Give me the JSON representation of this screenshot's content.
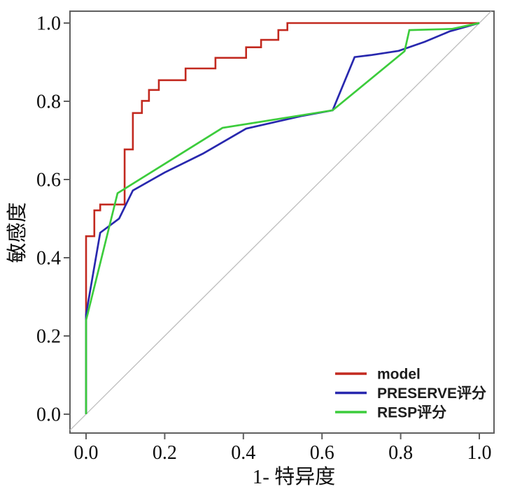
{
  "chart_data": {
    "type": "line",
    "title": "",
    "xlabel": "1- 特异度",
    "ylabel": "敏感度",
    "xlim": [
      0,
      1
    ],
    "ylim": [
      0,
      1
    ],
    "x_tick_labels": [
      "0.0",
      "0.2",
      "0.4",
      "0.6",
      "0.8",
      "1.0"
    ],
    "y_tick_labels": [
      "0.0",
      "0.2",
      "0.4",
      "0.6",
      "0.8",
      "1.0"
    ],
    "grid": false,
    "legend_position": "bottom-right",
    "reference_diagonal": {
      "present": true,
      "color": "#bdbdbd"
    },
    "frame_color": "#5f5f5f",
    "series": [
      {
        "name": "model",
        "color": "#c2291f",
        "stroke_width": 2.6,
        "points": [
          [
            0,
            0
          ],
          [
            0,
            0.455
          ],
          [
            0.021,
            0.455
          ],
          [
            0.021,
            0.521
          ],
          [
            0.036,
            0.521
          ],
          [
            0.036,
            0.536
          ],
          [
            0.098,
            0.536
          ],
          [
            0.098,
            0.677
          ],
          [
            0.119,
            0.677
          ],
          [
            0.119,
            0.77
          ],
          [
            0.142,
            0.77
          ],
          [
            0.142,
            0.801
          ],
          [
            0.16,
            0.801
          ],
          [
            0.16,
            0.829
          ],
          [
            0.185,
            0.829
          ],
          [
            0.185,
            0.854
          ],
          [
            0.253,
            0.854
          ],
          [
            0.253,
            0.884
          ],
          [
            0.329,
            0.884
          ],
          [
            0.329,
            0.911
          ],
          [
            0.407,
            0.911
          ],
          [
            0.407,
            0.938
          ],
          [
            0.445,
            0.938
          ],
          [
            0.445,
            0.957
          ],
          [
            0.489,
            0.957
          ],
          [
            0.489,
            0.982
          ],
          [
            0.512,
            0.982
          ],
          [
            0.512,
            1.0
          ],
          [
            1.0,
            1.0
          ]
        ]
      },
      {
        "name": "PRESERVE评分",
        "color": "#2828ae",
        "stroke_width": 2.7,
        "points": [
          [
            0,
            0
          ],
          [
            0,
            0.255
          ],
          [
            0.036,
            0.464
          ],
          [
            0.084,
            0.5
          ],
          [
            0.119,
            0.572
          ],
          [
            0.2,
            0.618
          ],
          [
            0.297,
            0.666
          ],
          [
            0.407,
            0.73
          ],
          [
            0.546,
            0.762
          ],
          [
            0.627,
            0.777
          ],
          [
            0.683,
            0.913
          ],
          [
            0.724,
            0.918
          ],
          [
            0.795,
            0.929
          ],
          [
            0.861,
            0.952
          ],
          [
            0.925,
            0.979
          ],
          [
            1.0,
            1.0
          ]
        ]
      },
      {
        "name": "RESP评分",
        "color": "#3ccc3c",
        "stroke_width": 2.7,
        "points": [
          [
            0,
            0
          ],
          [
            0,
            0.24
          ],
          [
            0.08,
            0.565
          ],
          [
            0.347,
            0.732
          ],
          [
            0.627,
            0.777
          ],
          [
            0.81,
            0.928
          ],
          [
            0.822,
            0.982
          ],
          [
            0.93,
            0.985
          ],
          [
            1.0,
            1.0
          ]
        ]
      }
    ]
  }
}
